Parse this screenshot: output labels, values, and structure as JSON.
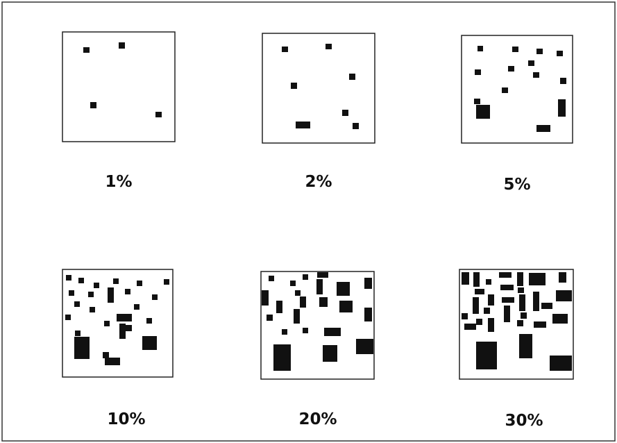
{
  "figure": {
    "panels": [
      {
        "id": "p1",
        "label": "1%",
        "density": 0.01
      },
      {
        "id": "p2",
        "label": "2%",
        "density": 0.02
      },
      {
        "id": "p5",
        "label": "5%",
        "density": 0.05
      },
      {
        "id": "p10",
        "label": "10%",
        "density": 0.1
      },
      {
        "id": "p20",
        "label": "20%",
        "density": 0.2
      },
      {
        "id": "p30",
        "label": "30%",
        "density": 0.3
      }
    ]
  },
  "colors": {
    "background": "#ffffff",
    "frame": "#333333",
    "panel_border": "#222222",
    "block": "#111111"
  }
}
